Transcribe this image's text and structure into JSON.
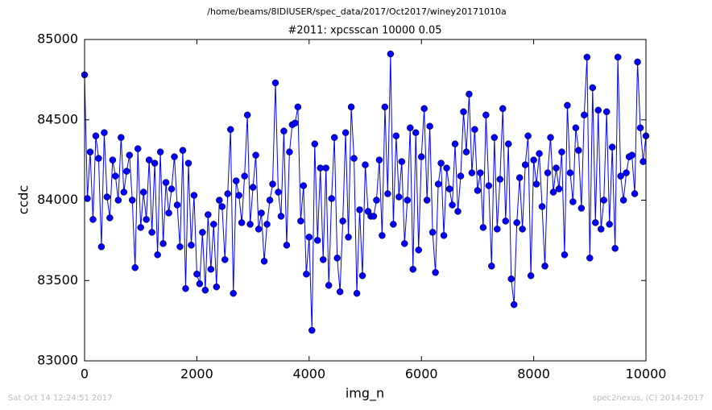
{
  "chart_data": {
    "type": "line",
    "suptitle": "/home/beams/8IDIUSER/spec_data/2017/Oct2017/winey20171010a",
    "title": "#2011: xpcsscan 10000 0.05",
    "xlabel": "img_n",
    "ylabel": "ccdc",
    "footer_left": "Sat Oct 14 12:24:51 2017",
    "footer_right": "spec2nexus, (C) 2014-2017",
    "xlim": [
      0,
      10000
    ],
    "xticks": [
      0,
      2000,
      4000,
      6000,
      8000,
      10000
    ],
    "ylim": [
      83000,
      85000
    ],
    "yticks": [
      83000,
      83500,
      84000,
      84500,
      85000
    ],
    "marker": true,
    "x": [
      0,
      50,
      100,
      150,
      200,
      250,
      300,
      350,
      400,
      450,
      500,
      550,
      600,
      650,
      700,
      750,
      800,
      850,
      900,
      950,
      1000,
      1050,
      1100,
      1150,
      1200,
      1250,
      1300,
      1350,
      1400,
      1450,
      1500,
      1550,
      1600,
      1650,
      1700,
      1750,
      1800,
      1850,
      1900,
      1950,
      2000,
      2050,
      2100,
      2150,
      2200,
      2250,
      2300,
      2350,
      2400,
      2450,
      2500,
      2550,
      2600,
      2650,
      2700,
      2750,
      2800,
      2850,
      2900,
      2950,
      3000,
      3050,
      3100,
      3150,
      3200,
      3250,
      3300,
      3350,
      3400,
      3450,
      3500,
      3550,
      3600,
      3650,
      3700,
      3750,
      3800,
      3850,
      3900,
      3950,
      4000,
      4050,
      4100,
      4150,
      4200,
      4250,
      4300,
      4350,
      4400,
      4450,
      4500,
      4550,
      4600,
      4650,
      4700,
      4750,
      4800,
      4850,
      4900,
      4950,
      5000,
      5050,
      5100,
      5150,
      5200,
      5250,
      5300,
      5350,
      5400,
      5450,
      5500,
      5550,
      5600,
      5650,
      5700,
      5750,
      5800,
      5850,
      5900,
      5950,
      6000,
      6050,
      6100,
      6150,
      6200,
      6250,
      6300,
      6350,
      6400,
      6450,
      6500,
      6550,
      6600,
      6650,
      6700,
      6750,
      6800,
      6850,
      6900,
      6950,
      7000,
      7050,
      7100,
      7150,
      7200,
      7250,
      7300,
      7350,
      7400,
      7450,
      7500,
      7550,
      7600,
      7650,
      7700,
      7750,
      7800,
      7850,
      7900,
      7950,
      8000,
      8050,
      8100,
      8150,
      8200,
      8250,
      8300,
      8350,
      8400,
      8450,
      8500,
      8550,
      8600,
      8650,
      8700,
      8750,
      8800,
      8850,
      8900,
      8950,
      9000,
      9050,
      9100,
      9150,
      9200,
      9250,
      9300,
      9350,
      9400,
      9450,
      9500,
      9550,
      9600,
      9650,
      9700,
      9750,
      9800,
      9850,
      9900,
      9950,
      10000
    ],
    "series": [
      {
        "name": "ccdc",
        "color": "#0000ff",
        "values": [
          84780,
          84010,
          84300,
          83880,
          84400,
          84260,
          83710,
          84420,
          84020,
          83890,
          84250,
          84150,
          84000,
          84390,
          84050,
          84180,
          84280,
          84000,
          83580,
          84320,
          83830,
          84050,
          83880,
          84250,
          83800,
          84230,
          83660,
          84300,
          83730,
          84110,
          83920,
          84070,
          84270,
          83970,
          83710,
          84310,
          83450,
          84230,
          83720,
          84030,
          83540,
          83480,
          83800,
          83440,
          83910,
          83570,
          83850,
          83460,
          84000,
          83960,
          83630,
          84040,
          84440,
          83420,
          84120,
          84030,
          83860,
          84150,
          84530,
          83850,
          84080,
          84280,
          83820,
          83920,
          83620,
          83850,
          84000,
          84100,
          84730,
          84050,
          83900,
          84430,
          83720,
          84300,
          84470,
          84480,
          84580,
          83870,
          84090,
          83540,
          83770,
          83190,
          84350,
          83750,
          84200,
          83630,
          84200,
          83470,
          84010,
          84390,
          83640,
          83430,
          83870,
          84420,
          83770,
          84580,
          84260,
          83420,
          83940,
          83530,
          84220,
          83930,
          83900,
          83900,
          84000,
          84250,
          83780,
          84580,
          84040,
          84910,
          83850,
          84400,
          84020,
          84240,
          83730,
          84000,
          84450,
          83570,
          84420,
          83690,
          84270,
          84570,
          84000,
          84460,
          83800,
          83550,
          84100,
          84230,
          83780,
          84200,
          84070,
          83970,
          84350,
          83930,
          84150,
          84550,
          84300,
          84660,
          84170,
          84440,
          84060,
          84170,
          83830,
          84530,
          84090,
          83590,
          84390,
          83820,
          84130,
          84570,
          83870,
          84350,
          83510,
          83350,
          83860,
          84140,
          83820,
          84220,
          84400,
          83530,
          84250,
          84100,
          84290,
          83960,
          83590,
          84170,
          84390,
          84050,
          84200,
          84070,
          84300,
          83660,
          84590,
          84170,
          83990,
          84450,
          84310,
          83950,
          84530,
          84890,
          83640,
          84700,
          83860,
          84560,
          83820,
          84000,
          84550,
          83850,
          84330,
          83700,
          84890,
          84150,
          84000,
          84170,
          84270,
          84280,
          84040,
          84860,
          84450,
          84240,
          84400
        ]
      }
    ]
  }
}
